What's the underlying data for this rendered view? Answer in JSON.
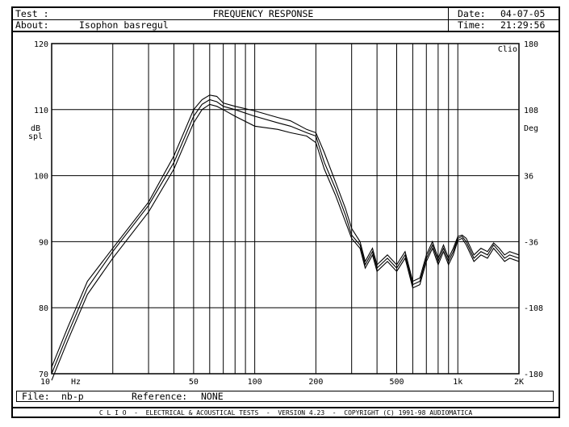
{
  "header": {
    "test_label": "Test :",
    "title": "FREQUENCY RESPONSE",
    "date_label": "Date:",
    "date_value": "04-07-05",
    "about_label": "About:",
    "about_value": "Isophon basregul",
    "time_label": "Time:",
    "time_value": "21:29:56"
  },
  "footer": {
    "file_label": "File:",
    "file_value": "nb-p",
    "reference_label": "Reference:",
    "reference_value": "NONE",
    "banner": "C L I O  -  ELECTRICAL & ACOUSTICAL TESTS  -  VERSION 4.23  -  COPYRIGHT (C) 1991-98 AUDIOMATICA"
  },
  "chart_data": {
    "type": "line",
    "xscale": "log",
    "xlim": [
      10,
      2000
    ],
    "ylim": [
      70,
      120
    ],
    "y2lim": [
      -180,
      180
    ],
    "grid": true,
    "xlabel": "Hz",
    "ylabel_lines": [
      "dB",
      "spl"
    ],
    "y2label": "Deg",
    "corner_label": "Clio",
    "x_tick_labels": [
      {
        "value": 10,
        "label": "10"
      },
      {
        "value": 50,
        "label": "50"
      },
      {
        "value": 100,
        "label": "100"
      },
      {
        "value": 200,
        "label": "200"
      },
      {
        "value": 500,
        "label": "500"
      },
      {
        "value": 1000,
        "label": "1k"
      },
      {
        "value": 2000,
        "label": "2K"
      }
    ],
    "y_tick_labels": [
      "70",
      "80",
      "90",
      "100",
      "110",
      "120"
    ],
    "y_ticks": [
      70,
      80,
      90,
      100,
      110,
      120
    ],
    "y2_tick_labels": [
      "-180",
      "-108",
      "-36",
      "36",
      "108",
      "180"
    ],
    "series": [
      {
        "x": [
          10,
          12,
          15,
          20,
          30,
          40,
          50,
          55,
          60,
          65,
          70,
          80,
          100,
          130,
          150,
          180,
          200,
          220,
          250,
          280,
          300,
          330,
          350,
          380,
          400,
          450,
          500,
          550,
          600,
          650,
          700,
          750,
          800,
          850,
          900,
          950,
          1000,
          1050,
          1100,
          1200,
          1300,
          1400,
          1500,
          1600,
          1700,
          1800,
          2000
        ],
        "y": [
          71,
          77,
          84,
          89,
          96,
          103,
          110,
          111.5,
          112.2,
          112,
          111,
          110.5,
          109.8,
          108.8,
          108.3,
          107,
          106.5,
          103.5,
          99,
          95,
          92,
          90,
          87,
          89,
          86.5,
          88,
          86.5,
          88.5,
          84,
          84.5,
          88,
          90,
          87.5,
          89.5,
          87.5,
          89,
          90.8,
          91,
          90.5,
          88,
          89,
          88.5,
          89.8,
          89,
          88,
          88.5,
          88
        ]
      },
      {
        "x": [
          10,
          12,
          15,
          20,
          30,
          40,
          50,
          55,
          60,
          65,
          70,
          80,
          100,
          130,
          150,
          180,
          200,
          220,
          250,
          280,
          300,
          330,
          350,
          380,
          400,
          450,
          500,
          550,
          600,
          650,
          700,
          750,
          800,
          850,
          900,
          950,
          1000,
          1050,
          1100,
          1200,
          1300,
          1400,
          1500,
          1600,
          1700,
          1800,
          2000
        ],
        "y": [
          70,
          76,
          83,
          88.5,
          95.5,
          102,
          109,
          110.8,
          111.5,
          111.2,
          110.5,
          110,
          109,
          108,
          107.5,
          106.5,
          106,
          102,
          98,
          94,
          91,
          89.5,
          86.5,
          88.5,
          86,
          87.5,
          86,
          88,
          83.5,
          84,
          87.5,
          89.5,
          87,
          89,
          87,
          88.5,
          90.5,
          90.8,
          90,
          87.5,
          88.5,
          88,
          89.5,
          88.5,
          87.5,
          88,
          87.5
        ]
      },
      {
        "x": [
          10,
          12,
          15,
          20,
          30,
          40,
          50,
          55,
          60,
          65,
          70,
          80,
          100,
          130,
          150,
          180,
          200,
          220,
          250,
          280,
          300,
          330,
          350,
          380,
          400,
          450,
          500,
          550,
          600,
          650,
          700,
          750,
          800,
          850,
          900,
          950,
          1000,
          1050,
          1100,
          1200,
          1300,
          1400,
          1500,
          1600,
          1700,
          1800,
          2000
        ],
        "y": [
          69,
          75,
          82,
          87.5,
          94.5,
          101,
          108,
          110,
          110.8,
          110.5,
          110,
          109,
          107.5,
          107,
          106.5,
          106,
          105,
          101,
          97,
          93,
          90.5,
          89,
          86,
          88,
          85.5,
          87,
          85.5,
          87.5,
          83,
          83.5,
          87,
          89,
          86.5,
          88.5,
          86.5,
          88,
          90.2,
          90.5,
          89.5,
          87,
          88,
          87.5,
          89,
          88,
          87,
          87.5,
          87
        ]
      }
    ]
  }
}
